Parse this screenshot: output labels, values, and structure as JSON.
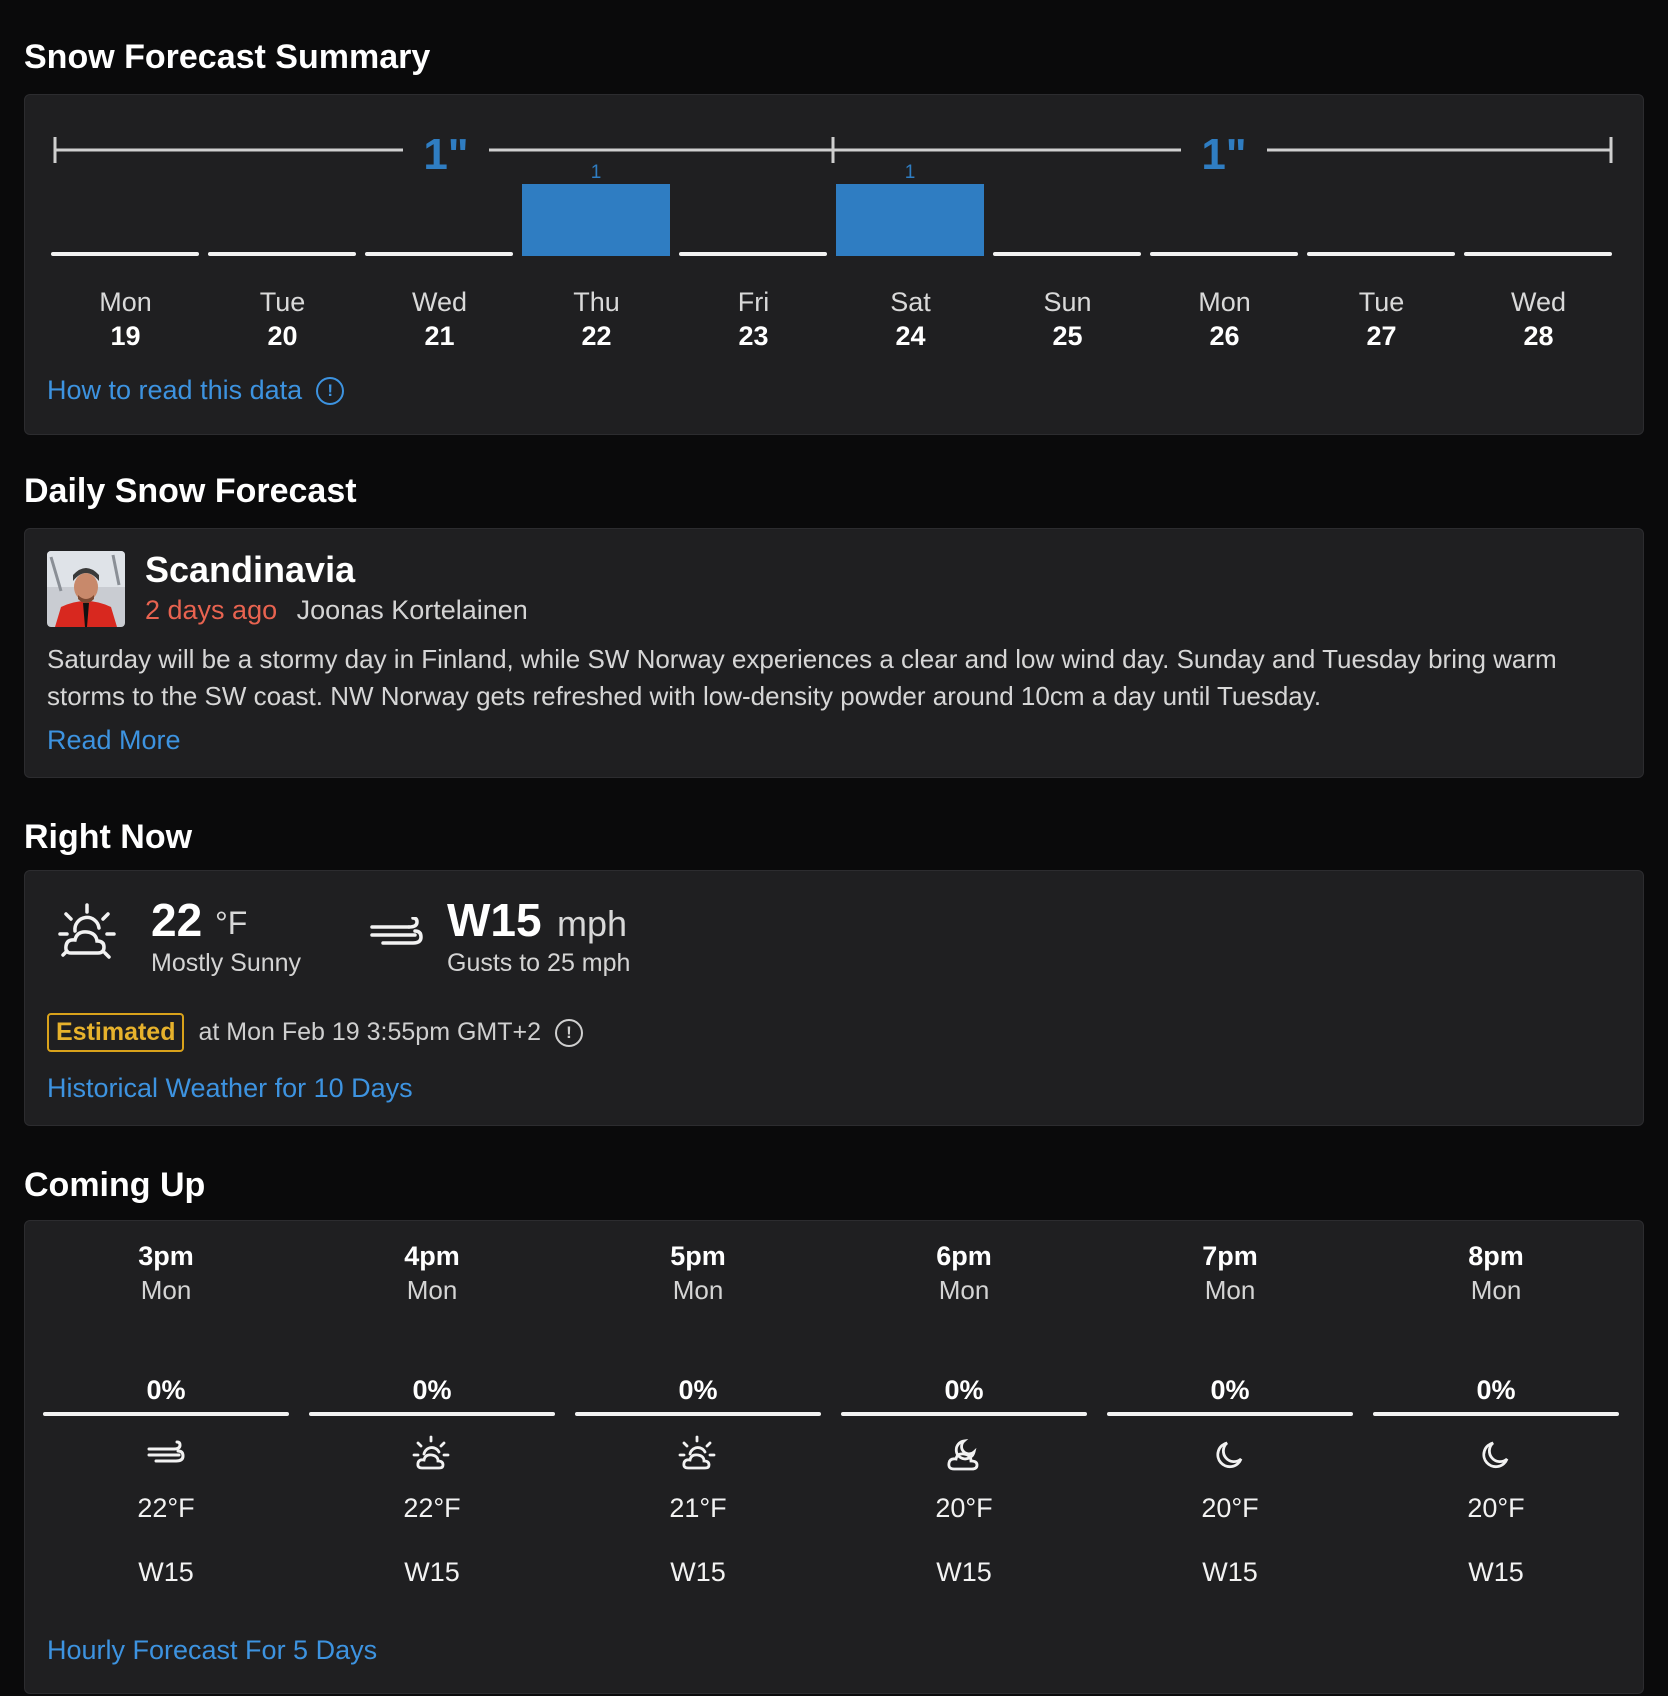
{
  "colors": {
    "background": "#0a0a0b",
    "card": "#1f1f21",
    "accent_blue": "#2f7dc2",
    "link_blue": "#3d93e0",
    "ago_red": "#e86350",
    "estimated_gold": "#d9a21b"
  },
  "summary": {
    "title": "Snow Forecast Summary",
    "period_totals": [
      "1\"",
      "1\""
    ],
    "how_to_read": "How to read this data",
    "info_icon": "info-circle-icon"
  },
  "chart_data": {
    "type": "bar",
    "categories": [
      "Mon 19",
      "Tue 20",
      "Wed 21",
      "Thu 22",
      "Fri 23",
      "Sat 24",
      "Sun 25",
      "Mon 26",
      "Tue 27",
      "Wed 28"
    ],
    "day_names": [
      "Mon",
      "Tue",
      "Wed",
      "Thu",
      "Fri",
      "Sat",
      "Sun",
      "Mon",
      "Tue",
      "Wed"
    ],
    "day_numbers": [
      "19",
      "20",
      "21",
      "22",
      "23",
      "24",
      "25",
      "26",
      "27",
      "28"
    ],
    "values": [
      0,
      0,
      0,
      1,
      0,
      1,
      0,
      0,
      0,
      0
    ],
    "value_labels": [
      "",
      "",
      "",
      "1",
      "",
      "1",
      "",
      "",
      "",
      ""
    ],
    "unit": "in",
    "bar_color": "#2f7dc2",
    "baseline_color": "#f2f2f2"
  },
  "daily": {
    "title": "Daily Snow Forecast",
    "region": "Scandinavia",
    "posted_ago": "2 days ago",
    "author": "Joonas Kortelainen",
    "body": "Saturday will be a stormy day in Finland, while SW Norway experiences a clear and low wind day. Sunday and Tuesday bring warm storms to the SW coast. NW Norway gets refreshed with low-density powder around 10cm a day until Tuesday.",
    "read_more": "Read More"
  },
  "right_now": {
    "title": "Right Now",
    "temp": "22",
    "temp_unit": "°F",
    "condition": "Mostly Sunny",
    "condition_icon": "sun-cloud-icon",
    "wind": "W15",
    "wind_unit": "mph",
    "wind_icon": "wind-icon",
    "gusts": "Gusts to 25 mph",
    "estimated_badge": "Estimated",
    "estimated_time": "at Mon Feb 19 3:55pm GMT+2",
    "historical_link": "Historical Weather for 10 Days"
  },
  "coming_up": {
    "title": "Coming Up",
    "hours": [
      {
        "time": "3pm",
        "day": "Mon",
        "precip": "0%",
        "icon": "wind-icon",
        "temp": "22°F",
        "wind": "W15"
      },
      {
        "time": "4pm",
        "day": "Mon",
        "precip": "0%",
        "icon": "sun-cloud-icon",
        "temp": "22°F",
        "wind": "W15"
      },
      {
        "time": "5pm",
        "day": "Mon",
        "precip": "0%",
        "icon": "sun-cloud-icon",
        "temp": "21°F",
        "wind": "W15"
      },
      {
        "time": "6pm",
        "day": "Mon",
        "precip": "0%",
        "icon": "moon-cloud-icon",
        "temp": "20°F",
        "wind": "W15"
      },
      {
        "time": "7pm",
        "day": "Mon",
        "precip": "0%",
        "icon": "moon-icon",
        "temp": "20°F",
        "wind": "W15"
      },
      {
        "time": "8pm",
        "day": "Mon",
        "precip": "0%",
        "icon": "moon-icon",
        "temp": "20°F",
        "wind": "W15"
      }
    ],
    "hourly_link": "Hourly Forecast For 5 Days"
  }
}
